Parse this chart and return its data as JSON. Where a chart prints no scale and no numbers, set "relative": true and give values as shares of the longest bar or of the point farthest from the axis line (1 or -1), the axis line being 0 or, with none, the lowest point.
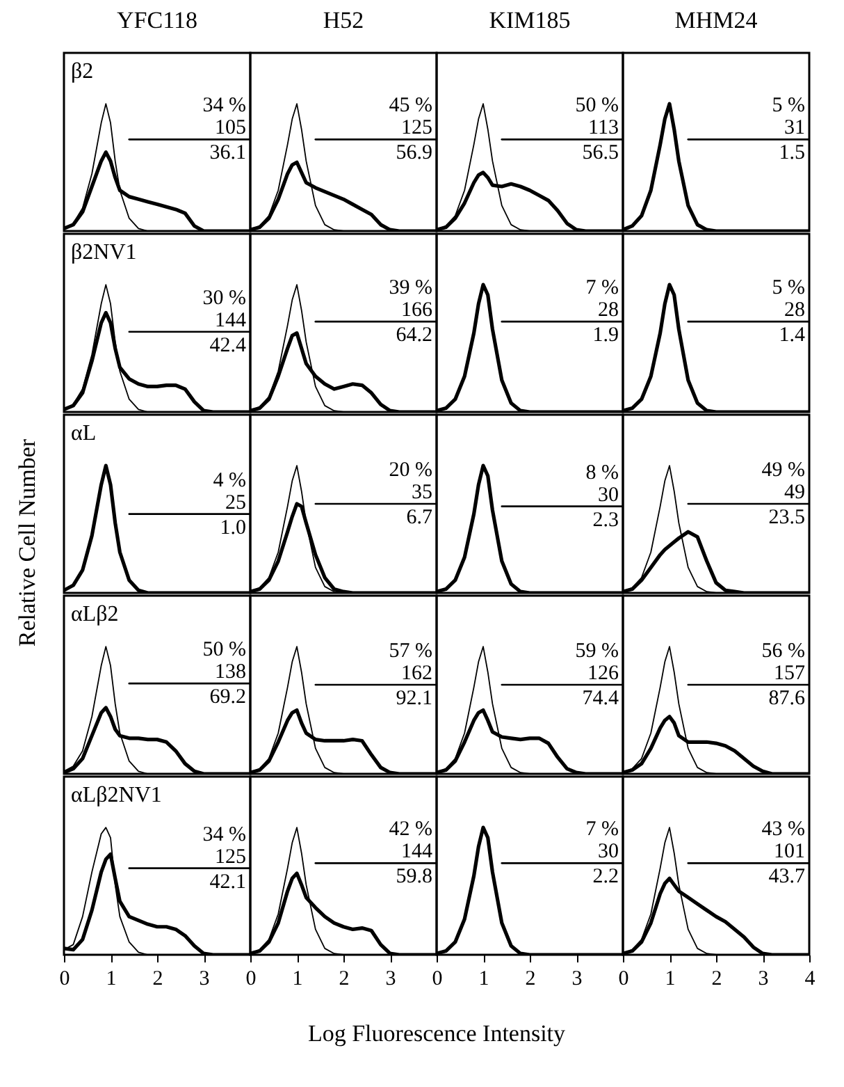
{
  "chart_data": [
    {
      "type": "line",
      "title": "YFC118",
      "relative": true,
      "xlim": [
        0,
        4
      ],
      "tick_labels": false,
      "annotations": [
        "β2",
        "34 %",
        "105",
        "36.1"
      ],
      "series": [
        {
          "color": "#000000",
          "x": [
            0,
            0.2,
            0.4,
            0.6,
            0.8,
            0.9,
            1.0,
            1.1,
            1.2,
            1.4,
            1.6,
            1.8,
            2.0,
            4.0
          ],
          "values": [
            0.02,
            0.06,
            0.18,
            0.45,
            0.85,
            1,
            0.85,
            0.55,
            0.32,
            0.1,
            0.02,
            0,
            0,
            0
          ]
        },
        {
          "color": "#000000",
          "x": [
            0,
            0.2,
            0.4,
            0.6,
            0.8,
            0.9,
            1.0,
            1.1,
            1.2,
            1.4,
            1.6,
            1.8,
            2.0,
            2.2,
            2.4,
            2.6,
            2.8,
            3.0,
            3.2,
            4.0
          ],
          "values": [
            0.02,
            0.05,
            0.15,
            0.35,
            0.55,
            0.62,
            0.55,
            0.42,
            0.32,
            0.27,
            0.25,
            0.23,
            0.21,
            0.19,
            0.17,
            0.14,
            0.04,
            0,
            0,
            0
          ]
        },
        {
          "color": "#000000",
          "x": [
            1.4,
            4.0
          ],
          "values": [
            0.72,
            0.72
          ]
        }
      ]
    },
    {
      "type": "line",
      "title": "H52",
      "relative": true,
      "xlim": [
        0,
        4
      ],
      "tick_labels": false,
      "annotations": [
        "45 %",
        "125",
        "56.9"
      ],
      "series": [
        {
          "color": "#000000",
          "x": [
            0,
            0.2,
            0.4,
            0.6,
            0.8,
            0.9,
            1.0,
            1.1,
            1.2,
            1.4,
            1.6,
            1.8,
            2.0,
            4.0
          ],
          "values": [
            0.01,
            0.04,
            0.12,
            0.32,
            0.68,
            0.88,
            1,
            0.8,
            0.55,
            0.2,
            0.05,
            0.01,
            0,
            0
          ]
        },
        {
          "color": "#000000",
          "x": [
            0,
            0.2,
            0.4,
            0.6,
            0.8,
            0.9,
            1.0,
            1.1,
            1.2,
            1.4,
            1.6,
            1.8,
            2.0,
            2.2,
            2.4,
            2.6,
            2.8,
            3.0,
            3.2,
            4.0
          ],
          "values": [
            0.01,
            0.03,
            0.1,
            0.25,
            0.45,
            0.52,
            0.54,
            0.46,
            0.38,
            0.34,
            0.31,
            0.28,
            0.25,
            0.21,
            0.17,
            0.13,
            0.05,
            0.01,
            0,
            0
          ]
        },
        {
          "color": "#000000",
          "x": [
            1.4,
            4.0
          ],
          "values": [
            0.72,
            0.72
          ]
        }
      ]
    },
    {
      "type": "line",
      "title": "KIM185",
      "relative": true,
      "xlim": [
        0,
        4
      ],
      "tick_labels": false,
      "annotations": [
        "50 %",
        "113",
        "56.5"
      ],
      "series": [
        {
          "color": "#000000",
          "x": [
            0,
            0.2,
            0.4,
            0.6,
            0.8,
            0.9,
            1.0,
            1.1,
            1.2,
            1.4,
            1.6,
            1.8,
            2.0,
            4.0
          ],
          "values": [
            0.01,
            0.04,
            0.12,
            0.32,
            0.68,
            0.88,
            1,
            0.8,
            0.55,
            0.2,
            0.05,
            0.01,
            0,
            0
          ]
        },
        {
          "color": "#000000",
          "x": [
            0,
            0.2,
            0.4,
            0.6,
            0.8,
            0.9,
            1.0,
            1.1,
            1.2,
            1.4,
            1.6,
            1.8,
            2.0,
            2.2,
            2.4,
            2.6,
            2.8,
            3.0,
            3.2,
            4.0
          ],
          "values": [
            0.01,
            0.03,
            0.1,
            0.22,
            0.38,
            0.44,
            0.46,
            0.42,
            0.36,
            0.35,
            0.37,
            0.35,
            0.32,
            0.28,
            0.24,
            0.16,
            0.06,
            0.01,
            0,
            0
          ]
        },
        {
          "color": "#000000",
          "x": [
            1.4,
            4.0
          ],
          "values": [
            0.72,
            0.72
          ]
        }
      ]
    },
    {
      "type": "line",
      "title": "MHM24",
      "relative": true,
      "xlim": [
        0,
        4
      ],
      "tick_labels": false,
      "annotations": [
        "5 %",
        "31",
        "1.5"
      ],
      "series": [
        {
          "color": "#000000",
          "x": [
            0,
            0.2,
            0.4,
            0.6,
            0.8,
            0.9,
            1.0,
            1.1,
            1.2,
            1.4,
            1.6,
            1.8,
            2.0,
            4.0
          ],
          "values": [
            0.01,
            0.04,
            0.12,
            0.32,
            0.68,
            0.88,
            1,
            0.8,
            0.55,
            0.2,
            0.05,
            0.01,
            0,
            0
          ]
        },
        {
          "color": "#000000",
          "x": [
            1.4,
            4.0
          ],
          "values": [
            0.72,
            0.72
          ]
        }
      ]
    },
    {
      "type": "line",
      "relative": true,
      "xlim": [
        0,
        4
      ],
      "tick_labels": false,
      "annotations": [
        "β2NV1",
        "30 %",
        "144",
        "42.4"
      ],
      "series": [
        {
          "color": "#000000",
          "x": [
            0,
            0.2,
            0.4,
            0.6,
            0.8,
            0.9,
            1.0,
            1.1,
            1.2,
            1.4,
            1.6,
            1.8,
            2.0,
            4.0
          ],
          "values": [
            0.02,
            0.06,
            0.18,
            0.45,
            0.85,
            1,
            0.85,
            0.55,
            0.32,
            0.1,
            0.02,
            0,
            0,
            0
          ]
        },
        {
          "color": "#000000",
          "x": [
            0,
            0.2,
            0.4,
            0.6,
            0.8,
            0.9,
            1.0,
            1.1,
            1.2,
            1.4,
            1.6,
            1.8,
            2.0,
            2.2,
            2.4,
            2.6,
            2.8,
            3.0,
            3.2,
            4.0
          ],
          "values": [
            0.02,
            0.05,
            0.15,
            0.4,
            0.7,
            0.78,
            0.7,
            0.5,
            0.35,
            0.26,
            0.22,
            0.2,
            0.2,
            0.21,
            0.21,
            0.18,
            0.08,
            0.01,
            0,
            0
          ]
        },
        {
          "color": "#000000",
          "x": [
            1.4,
            4.0
          ],
          "values": [
            0.63,
            0.63
          ]
        }
      ]
    },
    {
      "type": "line",
      "relative": true,
      "xlim": [
        0,
        4
      ],
      "tick_labels": false,
      "annotations": [
        "39 %",
        "166",
        "64.2"
      ],
      "series": [
        {
          "color": "#000000",
          "x": [
            0,
            0.2,
            0.4,
            0.6,
            0.8,
            0.9,
            1.0,
            1.1,
            1.2,
            1.4,
            1.6,
            1.8,
            2.0,
            4.0
          ],
          "values": [
            0.01,
            0.04,
            0.12,
            0.32,
            0.68,
            0.88,
            1,
            0.8,
            0.55,
            0.2,
            0.05,
            0.01,
            0,
            0
          ]
        },
        {
          "color": "#000000",
          "x": [
            0,
            0.2,
            0.4,
            0.6,
            0.8,
            0.9,
            1.0,
            1.1,
            1.2,
            1.4,
            1.6,
            1.8,
            2.0,
            2.2,
            2.4,
            2.6,
            2.8,
            3.0,
            3.2,
            4.0
          ],
          "values": [
            0.01,
            0.03,
            0.1,
            0.28,
            0.5,
            0.6,
            0.62,
            0.5,
            0.38,
            0.28,
            0.22,
            0.18,
            0.2,
            0.22,
            0.21,
            0.15,
            0.06,
            0.01,
            0,
            0
          ]
        },
        {
          "color": "#000000",
          "x": [
            1.4,
            4.0
          ],
          "values": [
            0.71,
            0.71
          ]
        }
      ]
    },
    {
      "type": "line",
      "relative": true,
      "xlim": [
        0,
        4
      ],
      "tick_labels": false,
      "annotations": [
        "7 %",
        "28",
        "1.9"
      ],
      "series": [
        {
          "color": "#000000",
          "x": [
            0,
            0.2,
            0.4,
            0.6,
            0.8,
            0.9,
            1.0,
            1.1,
            1.2,
            1.4,
            1.6,
            1.8,
            2.0,
            4.0
          ],
          "values": [
            0.01,
            0.03,
            0.1,
            0.28,
            0.62,
            0.85,
            1,
            0.92,
            0.65,
            0.25,
            0.07,
            0.01,
            0,
            0
          ]
        },
        {
          "color": "#000000",
          "x": [
            1.4,
            4.0
          ],
          "values": [
            0.71,
            0.71
          ]
        }
      ]
    },
    {
      "type": "line",
      "relative": true,
      "xlim": [
        0,
        4
      ],
      "tick_labels": false,
      "annotations": [
        "5 %",
        "28",
        "1.4"
      ],
      "series": [
        {
          "color": "#000000",
          "x": [
            0,
            0.2,
            0.4,
            0.6,
            0.8,
            0.9,
            1.0,
            1.1,
            1.2,
            1.4,
            1.6,
            1.8,
            2.0,
            4.0
          ],
          "values": [
            0.01,
            0.03,
            0.1,
            0.28,
            0.62,
            0.85,
            1,
            0.92,
            0.65,
            0.25,
            0.07,
            0.01,
            0,
            0
          ]
        },
        {
          "color": "#000000",
          "x": [
            1.4,
            4.0
          ],
          "values": [
            0.71,
            0.71
          ]
        }
      ]
    },
    {
      "type": "line",
      "ylabel": "Relative Cell Number",
      "relative": true,
      "xlim": [
        0,
        4
      ],
      "tick_labels": false,
      "annotations": [
        "αL",
        "4 %",
        "25",
        "1.0"
      ],
      "series": [
        {
          "color": "#000000",
          "x": [
            0,
            0.2,
            0.4,
            0.6,
            0.8,
            0.9,
            1.0,
            1.1,
            1.2,
            1.4,
            1.6,
            1.8,
            2.0,
            4.0
          ],
          "values": [
            0.02,
            0.06,
            0.18,
            0.45,
            0.85,
            1,
            0.85,
            0.55,
            0.32,
            0.1,
            0.02,
            0,
            0,
            0
          ]
        },
        {
          "color": "#000000",
          "x": [
            1.4,
            4.0
          ],
          "values": [
            0.62,
            0.62
          ]
        }
      ]
    },
    {
      "type": "line",
      "relative": true,
      "xlim": [
        0,
        4
      ],
      "tick_labels": false,
      "annotations": [
        "20 %",
        "35",
        "6.7"
      ],
      "series": [
        {
          "color": "#000000",
          "x": [
            0,
            0.2,
            0.4,
            0.6,
            0.8,
            0.9,
            1.0,
            1.1,
            1.2,
            1.4,
            1.6,
            1.8,
            2.0,
            4.0
          ],
          "values": [
            0.01,
            0.04,
            0.12,
            0.32,
            0.68,
            0.88,
            1,
            0.8,
            0.55,
            0.2,
            0.05,
            0.01,
            0,
            0
          ]
        },
        {
          "color": "#000000",
          "x": [
            0,
            0.2,
            0.4,
            0.6,
            0.8,
            0.9,
            1.0,
            1.1,
            1.2,
            1.4,
            1.6,
            1.8,
            2.0,
            2.2,
            2.4,
            2.6,
            2.8,
            3.0,
            3.2,
            4.0
          ],
          "values": [
            0.01,
            0.03,
            0.1,
            0.25,
            0.48,
            0.6,
            0.7,
            0.68,
            0.55,
            0.3,
            0.12,
            0.03,
            0.01,
            0,
            0,
            0,
            0,
            0,
            0,
            0
          ]
        },
        {
          "color": "#000000",
          "x": [
            1.4,
            4.0
          ],
          "values": [
            0.7,
            0.7
          ]
        }
      ]
    },
    {
      "type": "line",
      "relative": true,
      "xlim": [
        0,
        4
      ],
      "tick_labels": false,
      "annotations": [
        "8 %",
        "30",
        "2.3"
      ],
      "series": [
        {
          "color": "#000000",
          "x": [
            0,
            0.2,
            0.4,
            0.6,
            0.8,
            0.9,
            1.0,
            1.1,
            1.2,
            1.4,
            1.6,
            1.8,
            2.0,
            4.0
          ],
          "values": [
            0.01,
            0.03,
            0.1,
            0.28,
            0.62,
            0.85,
            1,
            0.92,
            0.65,
            0.25,
            0.07,
            0.01,
            0,
            0
          ]
        },
        {
          "color": "#000000",
          "x": [
            1.4,
            4.0
          ],
          "values": [
            0.68,
            0.68
          ]
        }
      ]
    },
    {
      "type": "line",
      "relative": true,
      "xlim": [
        0,
        4
      ],
      "tick_labels": false,
      "annotations": [
        "49 %",
        "49",
        "23.5"
      ],
      "series": [
        {
          "color": "#000000",
          "x": [
            0,
            0.2,
            0.4,
            0.6,
            0.8,
            0.9,
            1.0,
            1.1,
            1.2,
            1.4,
            1.6,
            1.8,
            2.0,
            4.0
          ],
          "values": [
            0.01,
            0.04,
            0.12,
            0.32,
            0.68,
            0.88,
            1,
            0.8,
            0.55,
            0.2,
            0.05,
            0.01,
            0,
            0
          ]
        },
        {
          "color": "#000000",
          "x": [
            0,
            0.2,
            0.4,
            0.6,
            0.8,
            0.9,
            1.0,
            1.1,
            1.2,
            1.4,
            1.6,
            1.8,
            2.0,
            2.2,
            2.4,
            2.6,
            2.8,
            3.0,
            3.2,
            4.0
          ],
          "values": [
            0.01,
            0.03,
            0.1,
            0.2,
            0.3,
            0.34,
            0.37,
            0.4,
            0.43,
            0.48,
            0.44,
            0.25,
            0.08,
            0.02,
            0.01,
            0,
            0,
            0,
            0,
            0
          ]
        },
        {
          "color": "#000000",
          "x": [
            1.4,
            4.0
          ],
          "values": [
            0.7,
            0.7
          ]
        }
      ]
    },
    {
      "type": "line",
      "relative": true,
      "xlim": [
        0,
        4
      ],
      "tick_labels": false,
      "annotations": [
        "αLβ2",
        "50 %",
        "138",
        "69.2"
      ],
      "series": [
        {
          "color": "#000000",
          "x": [
            0,
            0.2,
            0.4,
            0.6,
            0.8,
            0.9,
            1.0,
            1.1,
            1.2,
            1.4,
            1.6,
            1.8,
            2.0,
            4.0
          ],
          "values": [
            0.02,
            0.06,
            0.18,
            0.45,
            0.85,
            1,
            0.85,
            0.55,
            0.32,
            0.1,
            0.02,
            0,
            0,
            0
          ]
        },
        {
          "color": "#000000",
          "x": [
            0,
            0.2,
            0.4,
            0.6,
            0.8,
            0.9,
            1.0,
            1.1,
            1.2,
            1.4,
            1.6,
            1.8,
            2.0,
            2.2,
            2.4,
            2.6,
            2.8,
            3.0,
            3.2,
            4.0
          ],
          "values": [
            0.01,
            0.04,
            0.12,
            0.3,
            0.48,
            0.52,
            0.45,
            0.35,
            0.3,
            0.28,
            0.28,
            0.27,
            0.27,
            0.25,
            0.18,
            0.08,
            0.02,
            0,
            0,
            0
          ]
        },
        {
          "color": "#000000",
          "x": [
            1.4,
            4.0
          ],
          "values": [
            0.71,
            0.71
          ]
        }
      ]
    },
    {
      "type": "line",
      "relative": true,
      "xlim": [
        0,
        4
      ],
      "tick_labels": false,
      "annotations": [
        "57 %",
        "162",
        "92.1"
      ],
      "series": [
        {
          "color": "#000000",
          "x": [
            0,
            0.2,
            0.4,
            0.6,
            0.8,
            0.9,
            1.0,
            1.1,
            1.2,
            1.4,
            1.6,
            1.8,
            2.0,
            4.0
          ],
          "values": [
            0.01,
            0.04,
            0.12,
            0.32,
            0.68,
            0.88,
            1,
            0.8,
            0.55,
            0.2,
            0.05,
            0.01,
            0,
            0
          ]
        },
        {
          "color": "#000000",
          "x": [
            0,
            0.2,
            0.4,
            0.6,
            0.8,
            0.9,
            1.0,
            1.1,
            1.2,
            1.4,
            1.6,
            1.8,
            2.0,
            2.2,
            2.4,
            2.6,
            2.8,
            3.0,
            3.2,
            4.0
          ],
          "values": [
            0.01,
            0.03,
            0.1,
            0.25,
            0.42,
            0.48,
            0.5,
            0.4,
            0.32,
            0.27,
            0.26,
            0.26,
            0.26,
            0.27,
            0.26,
            0.15,
            0.05,
            0.01,
            0,
            0
          ]
        },
        {
          "color": "#000000",
          "x": [
            1.4,
            4.0
          ],
          "values": [
            0.7,
            0.7
          ]
        }
      ]
    },
    {
      "type": "line",
      "relative": true,
      "xlim": [
        0,
        4
      ],
      "tick_labels": false,
      "annotations": [
        "59 %",
        "126",
        "74.4"
      ],
      "series": [
        {
          "color": "#000000",
          "x": [
            0,
            0.2,
            0.4,
            0.6,
            0.8,
            0.9,
            1.0,
            1.1,
            1.2,
            1.4,
            1.6,
            1.8,
            2.0,
            4.0
          ],
          "values": [
            0.01,
            0.04,
            0.12,
            0.32,
            0.68,
            0.88,
            1,
            0.8,
            0.55,
            0.2,
            0.05,
            0.01,
            0,
            0
          ]
        },
        {
          "color": "#000000",
          "x": [
            0,
            0.2,
            0.4,
            0.6,
            0.8,
            0.9,
            1.0,
            1.1,
            1.2,
            1.4,
            1.6,
            1.8,
            2.0,
            2.2,
            2.4,
            2.6,
            2.8,
            3.0,
            3.2,
            4.0
          ],
          "values": [
            0.01,
            0.03,
            0.1,
            0.25,
            0.42,
            0.48,
            0.5,
            0.42,
            0.33,
            0.29,
            0.28,
            0.27,
            0.28,
            0.28,
            0.24,
            0.13,
            0.04,
            0.01,
            0,
            0
          ]
        },
        {
          "color": "#000000",
          "x": [
            1.4,
            4.0
          ],
          "values": [
            0.7,
            0.7
          ]
        }
      ]
    },
    {
      "type": "line",
      "relative": true,
      "xlim": [
        0,
        4
      ],
      "tick_labels": false,
      "annotations": [
        "56 %",
        "157",
        "87.6"
      ],
      "series": [
        {
          "color": "#000000",
          "x": [
            0,
            0.2,
            0.4,
            0.6,
            0.8,
            0.9,
            1.0,
            1.1,
            1.2,
            1.4,
            1.6,
            1.8,
            2.0,
            4.0
          ],
          "values": [
            0.01,
            0.04,
            0.12,
            0.32,
            0.68,
            0.88,
            1,
            0.8,
            0.55,
            0.2,
            0.05,
            0.01,
            0,
            0
          ]
        },
        {
          "color": "#000000",
          "x": [
            0,
            0.2,
            0.4,
            0.6,
            0.8,
            0.9,
            1.0,
            1.1,
            1.2,
            1.4,
            1.6,
            1.8,
            2.0,
            2.2,
            2.4,
            2.6,
            2.8,
            3.0,
            3.2,
            4.0
          ],
          "values": [
            0.01,
            0.03,
            0.08,
            0.2,
            0.36,
            0.42,
            0.45,
            0.4,
            0.3,
            0.25,
            0.25,
            0.25,
            0.24,
            0.22,
            0.18,
            0.12,
            0.06,
            0.02,
            0,
            0
          ]
        },
        {
          "color": "#000000",
          "x": [
            1.4,
            4.0
          ],
          "values": [
            0.7,
            0.7
          ]
        }
      ]
    },
    {
      "type": "line",
      "xlabel": "Log Fluorescence Intensity",
      "relative": true,
      "xlim": [
        0,
        4
      ],
      "xticks": [
        0,
        1,
        2,
        3
      ],
      "tick_labels": "x",
      "annotations": [
        "αLβ2NV1",
        "34 %",
        "125",
        "42.1"
      ],
      "series": [
        {
          "color": "#000000",
          "x": [
            0,
            0.2,
            0.4,
            0.6,
            0.8,
            0.9,
            1.0,
            1.1,
            1.2,
            1.4,
            1.6,
            1.8,
            2.0,
            4.0
          ],
          "values": [
            0.04,
            0.08,
            0.3,
            0.65,
            0.95,
            1,
            0.92,
            0.55,
            0.3,
            0.1,
            0.02,
            0,
            0,
            0
          ]
        },
        {
          "color": "#000000",
          "x": [
            0,
            0.2,
            0.4,
            0.6,
            0.8,
            0.9,
            1.0,
            1.1,
            1.2,
            1.4,
            1.6,
            1.8,
            2.0,
            2.2,
            2.4,
            2.6,
            2.8,
            3.0,
            3.2,
            4.0
          ],
          "values": [
            0.05,
            0.04,
            0.12,
            0.35,
            0.65,
            0.75,
            0.79,
            0.6,
            0.42,
            0.3,
            0.27,
            0.24,
            0.22,
            0.22,
            0.2,
            0.15,
            0.07,
            0.01,
            0,
            0
          ]
        },
        {
          "color": "#000000",
          "x": [
            1.4,
            4.0
          ],
          "values": [
            0.68,
            0.68
          ]
        }
      ]
    },
    {
      "type": "line",
      "relative": true,
      "xlim": [
        0,
        4
      ],
      "xticks": [
        0,
        1,
        2,
        3
      ],
      "tick_labels": "x",
      "annotations": [
        "42 %",
        "144",
        "59.8"
      ],
      "series": [
        {
          "color": "#000000",
          "x": [
            0,
            0.2,
            0.4,
            0.6,
            0.8,
            0.9,
            1.0,
            1.1,
            1.2,
            1.4,
            1.6,
            1.8,
            2.0,
            4.0
          ],
          "values": [
            0.01,
            0.04,
            0.12,
            0.32,
            0.68,
            0.88,
            1,
            0.8,
            0.55,
            0.2,
            0.05,
            0.01,
            0,
            0
          ]
        },
        {
          "color": "#000000",
          "x": [
            0,
            0.2,
            0.4,
            0.6,
            0.8,
            0.9,
            1.0,
            1.1,
            1.2,
            1.4,
            1.6,
            1.8,
            2.0,
            2.2,
            2.4,
            2.6,
            2.8,
            3.0,
            3.2,
            4.0
          ],
          "values": [
            0.01,
            0.03,
            0.1,
            0.25,
            0.5,
            0.6,
            0.64,
            0.55,
            0.45,
            0.37,
            0.3,
            0.25,
            0.22,
            0.2,
            0.21,
            0.19,
            0.08,
            0.01,
            0,
            0
          ]
        },
        {
          "color": "#000000",
          "x": [
            1.4,
            4.0
          ],
          "values": [
            0.72,
            0.72
          ]
        }
      ]
    },
    {
      "type": "line",
      "relative": true,
      "xlim": [
        0,
        4
      ],
      "xticks": [
        0,
        1,
        2,
        3
      ],
      "tick_labels": "x",
      "annotations": [
        "7 %",
        "30",
        "2.2"
      ],
      "series": [
        {
          "color": "#000000",
          "x": [
            0,
            0.2,
            0.4,
            0.6,
            0.8,
            0.9,
            1.0,
            1.1,
            1.2,
            1.4,
            1.6,
            1.8,
            2.0,
            4.0
          ],
          "values": [
            0.01,
            0.03,
            0.1,
            0.28,
            0.62,
            0.85,
            1,
            0.92,
            0.65,
            0.25,
            0.07,
            0.01,
            0,
            0
          ]
        },
        {
          "color": "#000000",
          "x": [
            1.4,
            4.0
          ],
          "values": [
            0.72,
            0.72
          ]
        }
      ]
    },
    {
      "type": "line",
      "relative": true,
      "xlim": [
        0,
        4
      ],
      "xticks": [
        0,
        1,
        2,
        3,
        4
      ],
      "tick_labels": "x",
      "annotations": [
        "43 %",
        "101",
        "43.7"
      ],
      "series": [
        {
          "color": "#000000",
          "x": [
            0,
            0.2,
            0.4,
            0.6,
            0.8,
            0.9,
            1.0,
            1.1,
            1.2,
            1.4,
            1.6,
            1.8,
            2.0,
            4.0
          ],
          "values": [
            0.01,
            0.04,
            0.12,
            0.32,
            0.68,
            0.88,
            1,
            0.8,
            0.55,
            0.2,
            0.05,
            0.01,
            0,
            0
          ]
        },
        {
          "color": "#000000",
          "x": [
            0,
            0.2,
            0.4,
            0.6,
            0.8,
            0.9,
            1.0,
            1.1,
            1.2,
            1.4,
            1.6,
            1.8,
            2.0,
            2.2,
            2.4,
            2.6,
            2.8,
            3.0,
            3.2,
            4.0
          ],
          "values": [
            0.01,
            0.03,
            0.1,
            0.25,
            0.48,
            0.56,
            0.6,
            0.55,
            0.5,
            0.45,
            0.4,
            0.35,
            0.3,
            0.26,
            0.2,
            0.14,
            0.06,
            0.01,
            0,
            0
          ]
        },
        {
          "color": "#000000",
          "x": [
            1.4,
            4.0
          ],
          "values": [
            0.72,
            0.72
          ]
        }
      ]
    }
  ]
}
